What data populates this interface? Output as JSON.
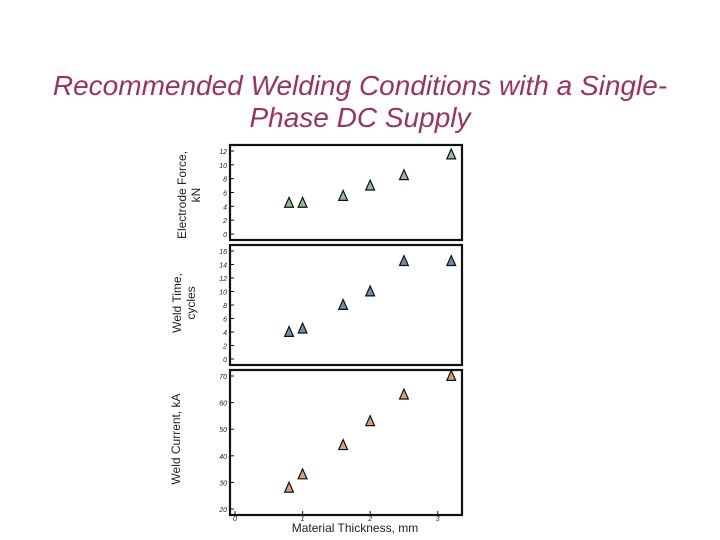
{
  "title": "Recommended Welding Conditions with a Single-Phase DC Supply",
  "title_line1": "Recommended Welding Conditions with a Single-",
  "title_line2": "Phase DC Supply",
  "xlabel": "Material Thickness, mm",
  "colors": {
    "title": "#993366",
    "marker_force": "#8fbf8f",
    "marker_time": "#6a8fb0",
    "marker_current": "#d9a07a"
  },
  "chart_data": [
    {
      "type": "scatter",
      "ylabel_line1": "Electrode Force,",
      "ylabel_line2": "kN",
      "ylim": [
        0,
        12
      ],
      "yticks": [
        "0",
        "2",
        "4",
        "6",
        "8",
        "10",
        "12"
      ],
      "xlim": [
        0,
        3.3
      ],
      "grid": false,
      "x": [
        0.8,
        1.0,
        1.6,
        2.0,
        2.5,
        3.2
      ],
      "y": [
        4.5,
        4.5,
        5.5,
        7.0,
        8.5,
        11.5
      ]
    },
    {
      "type": "scatter",
      "ylabel_line1": "Weld Time,",
      "ylabel_line2": "cycles",
      "ylim": [
        0,
        16
      ],
      "yticks": [
        "0",
        "2",
        "4",
        "6",
        "8",
        "10",
        "12",
        "14",
        "16"
      ],
      "xlim": [
        0,
        3.3
      ],
      "grid": false,
      "x": [
        0.8,
        1.0,
        1.6,
        2.0,
        2.5,
        3.2
      ],
      "y": [
        4.0,
        4.5,
        8.0,
        10.0,
        14.5,
        14.5
      ]
    },
    {
      "type": "scatter",
      "ylabel_line1": "Weld Current, kA",
      "ylim": [
        20,
        70
      ],
      "yticks": [
        "20",
        "30",
        "40",
        "50",
        "60",
        "70"
      ],
      "xlim": [
        0,
        3.3
      ],
      "xticks": [
        "0",
        "1",
        "2",
        "3"
      ],
      "grid": false,
      "x": [
        0.8,
        1.0,
        1.6,
        2.0,
        2.5,
        3.2
      ],
      "y": [
        28,
        33,
        44,
        53,
        63,
        70
      ]
    }
  ]
}
